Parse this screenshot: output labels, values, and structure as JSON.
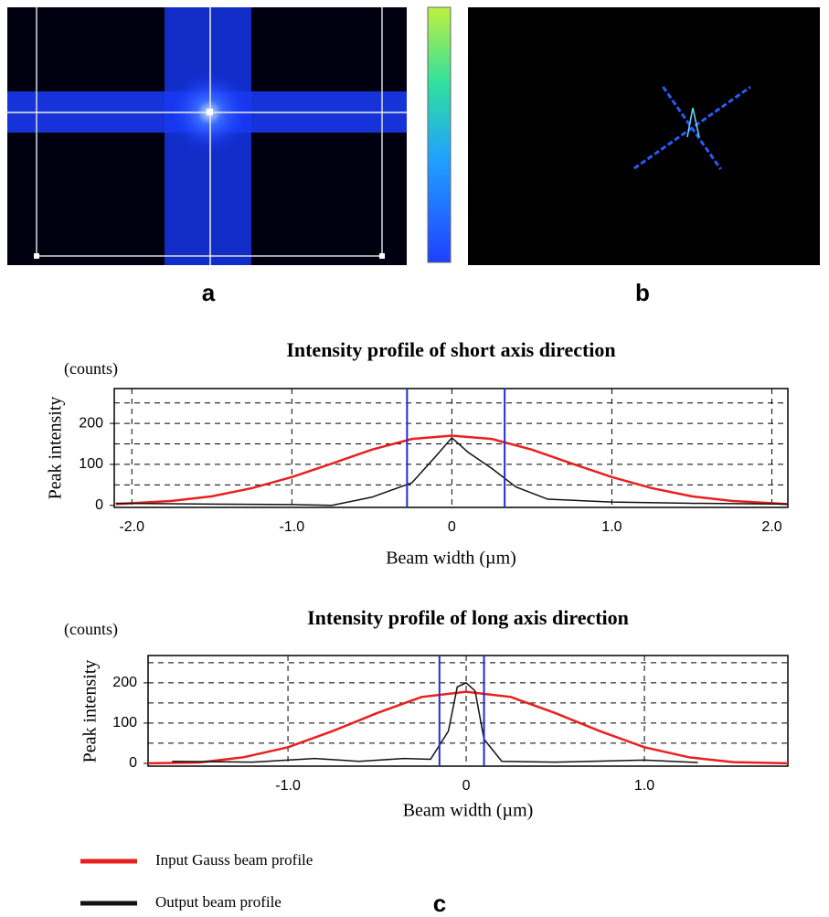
{
  "panels": [
    "a",
    "b",
    "c"
  ],
  "chart_data": [
    {
      "type": "line",
      "title": "Intensity profile of short axis direction",
      "unit_label": "(counts)",
      "ylabel": "Peak intensity",
      "xlabel": "Beam width (µm)",
      "xlim": [
        -2.11,
        2.1
      ],
      "ylim": [
        -5,
        285
      ],
      "xticks": [
        {
          "value": -2,
          "label": "-2.0"
        },
        {
          "value": -1,
          "label": "-1.0"
        },
        0,
        {
          "value": 1,
          "label": "1.0"
        },
        {
          "value": 2,
          "label": "2.0"
        }
      ],
      "yticks": [
        0,
        100,
        200
      ],
      "ygrid": [
        50,
        100,
        150,
        200,
        250
      ],
      "markers": {
        "color": "#2a2ad0",
        "x": [
          -0.28,
          0.33
        ]
      },
      "series": [
        {
          "name": "Input Gauss beam profile",
          "color": "#e8201e",
          "x": [
            -2.1,
            -1.75,
            -1.5,
            -1.25,
            -1,
            -0.75,
            -0.5,
            -0.25,
            0,
            0.25,
            0.5,
            0.75,
            1,
            1.25,
            1.5,
            1.75,
            2.1
          ],
          "values": [
            3,
            11,
            22,
            42,
            69,
            102,
            136,
            162,
            170,
            162,
            136,
            102,
            69,
            42,
            22,
            11,
            3
          ]
        },
        {
          "name": "Output beam profile",
          "color": "#111111",
          "x": [
            -2.1,
            -1.5,
            -1,
            -0.75,
            -0.5,
            -0.25,
            -0.1,
            0,
            0.1,
            0.25,
            0.4,
            0.6,
            1,
            1.5,
            2.1
          ],
          "values": [
            5,
            3,
            2,
            0,
            20,
            55,
            120,
            165,
            130,
            90,
            45,
            15,
            8,
            5,
            3
          ]
        }
      ]
    },
    {
      "type": "line",
      "title": "Intensity profile of long axis direction",
      "unit_label": "(counts)",
      "ylabel": "Peak intensity",
      "xlabel": "Beam width (µm)",
      "xlim": [
        -1.785,
        1.805
      ],
      "ylim": [
        -7,
        268
      ],
      "xticks": [
        {
          "value": -1,
          "label": "-1.0"
        },
        0,
        {
          "value": 1,
          "label": "1.0"
        }
      ],
      "yticks": [
        0,
        100,
        200
      ],
      "ygrid": [
        50,
        100,
        150,
        200,
        250
      ],
      "markers": {
        "color": "#2a2ad0",
        "x": [
          -0.15,
          0.1
        ]
      },
      "series": [
        {
          "color": "#e8201e",
          "x": [
            -1.785,
            -1.5,
            -1.25,
            -1,
            -0.75,
            -0.5,
            -0.25,
            0,
            0.25,
            0.5,
            0.75,
            1,
            1.25,
            1.5,
            1.805
          ],
          "values": [
            0,
            2,
            15,
            40,
            80,
            125,
            165,
            178,
            165,
            125,
            80,
            40,
            15,
            3,
            0
          ]
        },
        {
          "color": "#111111",
          "x": [
            -1.65,
            -1.2,
            -0.85,
            -0.6,
            -0.35,
            -0.2,
            -0.1,
            -0.05,
            0,
            0.05,
            0.1,
            0.2,
            0.5,
            1,
            1.3
          ],
          "values": [
            5,
            3,
            12,
            5,
            12,
            10,
            80,
            190,
            200,
            180,
            60,
            5,
            3,
            8,
            2
          ]
        }
      ]
    }
  ]
}
